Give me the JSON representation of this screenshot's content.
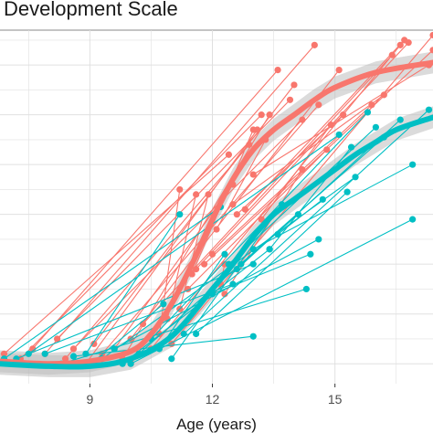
{
  "title": "Development Scale",
  "colors": {
    "series_a": "#F8766D",
    "series_b": "#00BFC4",
    "ribbon": "#bdbdbd",
    "grid": "#e0e0e0",
    "background": "#ffffff"
  },
  "chart_data": {
    "type": "line",
    "title": "Development Scale",
    "xlabel": "Age (years)",
    "ylabel": "",
    "x_ticks": [
      9,
      12,
      15
    ],
    "xlim": [
      6.8,
      17.4
    ],
    "ylim": [
      0.6,
      7.7
    ],
    "grid": true,
    "legend": "none",
    "series": [
      {
        "color": "#F8766D",
        "smooth": [
          [
            6.8,
            1.05
          ],
          [
            8,
            1.0
          ],
          [
            9,
            1.05
          ],
          [
            10,
            1.25
          ],
          [
            10.5,
            1.6
          ],
          [
            11,
            2.2
          ],
          [
            11.5,
            3.0
          ],
          [
            12,
            3.9
          ],
          [
            12.5,
            4.7
          ],
          [
            13,
            5.3
          ],
          [
            13.5,
            5.7
          ],
          [
            14,
            6.0
          ],
          [
            14.5,
            6.3
          ],
          [
            15,
            6.55
          ],
          [
            16,
            6.85
          ],
          [
            17.4,
            7.05
          ]
        ],
        "subjects": [
          [
            [
              6.9,
              1.2
            ],
            [
              12.4,
              5.2
            ]
          ],
          [
            [
              7.3,
              1.1
            ],
            [
              13.2,
              6.0
            ]
          ],
          [
            [
              7.6,
              1.3
            ],
            [
              13.6,
              6.9
            ]
          ],
          [
            [
              7.9,
              1.2
            ],
            [
              14.5,
              7.4
            ]
          ],
          [
            [
              8.2,
              1.5
            ],
            [
              13.9,
              6.3
            ]
          ],
          [
            [
              8.4,
              1.1
            ],
            [
              12.9,
              5.4
            ]
          ],
          [
            [
              8.6,
              1.3
            ],
            [
              14.2,
              5.9
            ]
          ],
          [
            [
              8.9,
              1.0
            ],
            [
              13.1,
              5.7
            ]
          ],
          [
            [
              9.1,
              1.4
            ],
            [
              14.0,
              6.6
            ]
          ],
          [
            [
              9.3,
              1.2
            ],
            [
              14.6,
              6.2
            ]
          ],
          [
            [
              9.6,
              1.3
            ],
            [
              12.5,
              4.6
            ]
          ],
          [
            [
              9.8,
              1.1
            ],
            [
              13.4,
              6.0
            ]
          ],
          [
            [
              10.0,
              1.5
            ],
            [
              15.1,
              6.9
            ]
          ],
          [
            [
              10.3,
              1.8
            ],
            [
              16.4,
              7.2
            ]
          ],
          [
            [
              10.5,
              1.3
            ],
            [
              16.6,
              7.4
            ]
          ],
          [
            [
              10.7,
              1.6
            ],
            [
              11.2,
              4.5
            ]
          ],
          [
            [
              10.9,
              1.9
            ],
            [
              11.6,
              4.4
            ]
          ],
          [
            [
              11.0,
              1.4
            ],
            [
              17.4,
              7.6
            ]
          ],
          [
            [
              11.2,
              2.1
            ],
            [
              11.9,
              4.4
            ]
          ],
          [
            [
              11.4,
              2.5
            ],
            [
              14.8,
              5.3
            ]
          ],
          [
            [
              11.5,
              2.8
            ],
            [
              13.0,
              5.7
            ]
          ],
          [
            [
              11.6,
              2.9
            ],
            [
              16.8,
              7.45
            ]
          ],
          [
            [
              11.8,
              3.0
            ],
            [
              17.4,
              7.3
            ]
          ],
          [
            [
              12.0,
              3.2
            ],
            [
              15.9,
              6.2
            ]
          ],
          [
            [
              12.1,
              3.7
            ],
            [
              13.3,
              5.5
            ]
          ],
          [
            [
              12.3,
              2.4
            ],
            [
              14.2,
              4.9
            ]
          ],
          [
            [
              12.5,
              4.2
            ],
            [
              16.2,
              6.4
            ]
          ],
          [
            [
              12.6,
              4.0
            ],
            [
              15.2,
              6.0
            ]
          ],
          [
            [
              12.8,
              4.1
            ],
            [
              16.7,
              7.5
            ]
          ],
          [
            [
              13.0,
              4.8
            ],
            [
              17.3,
              7.0
            ]
          ],
          [
            [
              13.2,
              3.9
            ],
            [
              14.9,
              5.8
            ]
          ],
          [
            [
              10.0,
              1.0
            ],
            [
              10.2,
              1.2
            ]
          ],
          [
            [
              12.2,
              2.6
            ],
            [
              12.3,
              3.0
            ]
          ]
        ]
      },
      {
        "color": "#00BFC4",
        "smooth": [
          [
            6.8,
            1.0
          ],
          [
            8,
            0.95
          ],
          [
            9,
            0.95
          ],
          [
            10,
            1.1
          ],
          [
            11,
            1.55
          ],
          [
            12,
            2.5
          ],
          [
            12.5,
            3.0
          ],
          [
            13,
            3.55
          ],
          [
            13.5,
            4.0
          ],
          [
            14,
            4.3
          ],
          [
            14.5,
            4.6
          ],
          [
            15,
            4.9
          ],
          [
            15.5,
            5.2
          ],
          [
            16,
            5.45
          ],
          [
            16.5,
            5.7
          ],
          [
            17.4,
            5.95
          ]
        ],
        "subjects": [
          [
            [
              6.9,
              1.1
            ],
            [
              12.2,
              4.15
            ]
          ],
          [
            [
              7.2,
              1.1
            ],
            [
              13.0,
              3.0
            ]
          ],
          [
            [
              7.5,
              1.2
            ],
            [
              15.1,
              5.6
            ]
          ],
          [
            [
              7.9,
              1.2
            ],
            [
              12.5,
              2.6
            ]
          ],
          [
            [
              8.3,
              1.0
            ],
            [
              14.3,
              2.5
            ]
          ],
          [
            [
              8.6,
              1.15
            ],
            [
              13.0,
              1.55
            ]
          ],
          [
            [
              8.9,
              1.2
            ],
            [
              11.2,
              4.0
            ]
          ],
          [
            [
              9.1,
              1.05
            ],
            [
              10.8,
              2.2
            ]
          ],
          [
            [
              9.3,
              1.1
            ],
            [
              15.5,
              4.75
            ]
          ],
          [
            [
              9.6,
              1.3
            ],
            [
              14.6,
              3.5
            ]
          ],
          [
            [
              9.8,
              1.0
            ],
            [
              13.4,
              3.3
            ]
          ],
          [
            [
              10.0,
              1.0
            ],
            [
              16.9,
              3.9
            ]
          ],
          [
            [
              10.2,
              1.2
            ],
            [
              16.2,
              5.55
            ]
          ],
          [
            [
              10.5,
              1.5
            ],
            [
              15.8,
              6.05
            ]
          ],
          [
            [
              10.7,
              1.3
            ],
            [
              12.3,
              3.2
            ]
          ],
          [
            [
              11.0,
              1.1
            ],
            [
              13.7,
              4.2
            ]
          ],
          [
            [
              11.3,
              1.6
            ],
            [
              17.3,
              6.1
            ]
          ],
          [
            [
              11.6,
              1.6
            ],
            [
              15.3,
              4.45
            ]
          ],
          [
            [
              12.0,
              2.4
            ],
            [
              14.4,
              3.2
            ]
          ],
          [
            [
              12.4,
              3.0
            ],
            [
              16.0,
              5.75
            ]
          ],
          [
            [
              12.6,
              2.9
            ],
            [
              16.6,
              5.9
            ]
          ],
          [
            [
              12.7,
              3.0
            ],
            [
              14.1,
              4.0
            ]
          ],
          [
            [
              13.0,
              3.3
            ],
            [
              16.9,
              5.0
            ]
          ],
          [
            [
              13.4,
              3.3
            ],
            [
              15.4,
              5.35
            ]
          ],
          [
            [
              13.6,
              3.6
            ],
            [
              14.7,
              4.3
            ]
          ]
        ]
      }
    ]
  }
}
